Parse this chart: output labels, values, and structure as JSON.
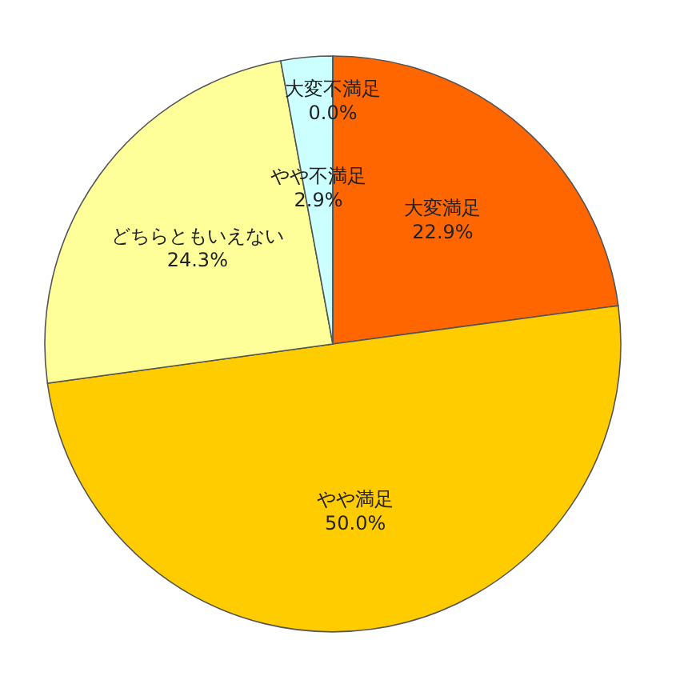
{
  "chart_data": {
    "type": "pie",
    "categories": [
      "大変満足",
      "やや満足",
      "どちらともいえない",
      "やや不満足",
      "大変不満足"
    ],
    "values": [
      22.9,
      50.0,
      24.3,
      2.9,
      0.0
    ],
    "colors": [
      "#ff6600",
      "#ffcc00",
      "#ffff99",
      "#ccffff",
      "#99ccff"
    ],
    "value_labels": [
      "22.9%",
      "50.0%",
      "24.3%",
      "2.9%",
      "0.0%"
    ]
  }
}
